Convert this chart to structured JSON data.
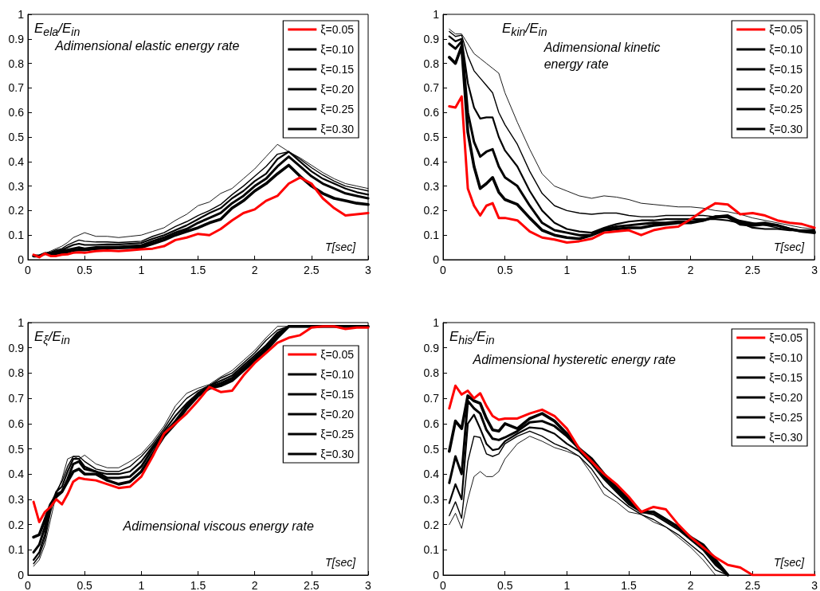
{
  "chart_data": [
    {
      "type": "line",
      "ylabel": "E$_{ela}$/E$_{in}$",
      "xlabel": "T[sec]",
      "annotations": [
        "Adimensional elastic energy rate"
      ],
      "legend": "top right",
      "marker": "none",
      "grid": false,
      "xlim": [
        0,
        3
      ],
      "ylim": [
        0,
        1
      ],
      "xticks": [
        0,
        0.5,
        1,
        1.5,
        2,
        2.5,
        3
      ],
      "yticks": [
        0,
        0.1,
        0.2,
        0.3,
        0.4,
        0.5,
        0.6,
        0.7,
        0.8,
        0.9,
        1
      ],
      "x": [
        0.05,
        0.1,
        0.15,
        0.2,
        0.25,
        0.3,
        0.35,
        0.4,
        0.45,
        0.5,
        0.6,
        0.7,
        0.8,
        0.9,
        1.0,
        1.1,
        1.2,
        1.3,
        1.4,
        1.5,
        1.6,
        1.7,
        1.8,
        1.9,
        2.0,
        2.1,
        2.2,
        2.3,
        2.4,
        2.5,
        2.6,
        2.7,
        2.8,
        2.9,
        3.0
      ],
      "series": [
        {
          "name": "ξ=0.05",
          "color": "#ff0000",
          "values": [
            0.02,
            0.01,
            0.025,
            0.015,
            0.015,
            0.02,
            0.022,
            0.028,
            0.03,
            0.028,
            0.035,
            0.037,
            0.035,
            0.038,
            0.042,
            0.045,
            0.055,
            0.08,
            0.09,
            0.105,
            0.1,
            0.125,
            0.16,
            0.19,
            0.205,
            0.24,
            0.26,
            0.31,
            0.335,
            0.31,
            0.25,
            0.21,
            0.18,
            0.185,
            0.19
          ]
        },
        {
          "name": "ξ=0.10",
          "color": "#000000",
          "values": [
            0.015,
            0.015,
            0.025,
            0.022,
            0.025,
            0.028,
            0.032,
            0.038,
            0.04,
            0.04,
            0.045,
            0.048,
            0.048,
            0.05,
            0.05,
            0.065,
            0.08,
            0.1,
            0.115,
            0.13,
            0.15,
            0.165,
            0.21,
            0.24,
            0.28,
            0.31,
            0.35,
            0.385,
            0.34,
            0.3,
            0.27,
            0.25,
            0.24,
            0.23,
            0.225
          ]
        },
        {
          "name": "ξ=0.15",
          "color": "#000000",
          "values": [
            0.015,
            0.015,
            0.025,
            0.025,
            0.03,
            0.035,
            0.04,
            0.045,
            0.05,
            0.045,
            0.05,
            0.052,
            0.052,
            0.055,
            0.058,
            0.075,
            0.09,
            0.11,
            0.125,
            0.15,
            0.17,
            0.19,
            0.23,
            0.26,
            0.3,
            0.33,
            0.38,
            0.42,
            0.38,
            0.34,
            0.31,
            0.29,
            0.27,
            0.26,
            0.25
          ]
        },
        {
          "name": "ξ=0.20",
          "color": "#000000",
          "values": [
            0.015,
            0.015,
            0.025,
            0.028,
            0.035,
            0.04,
            0.05,
            0.06,
            0.065,
            0.06,
            0.06,
            0.062,
            0.062,
            0.065,
            0.068,
            0.085,
            0.1,
            0.12,
            0.14,
            0.165,
            0.19,
            0.21,
            0.25,
            0.28,
            0.32,
            0.35,
            0.41,
            0.44,
            0.4,
            0.36,
            0.33,
            0.31,
            0.29,
            0.275,
            0.265
          ]
        },
        {
          "name": "ξ=0.25",
          "color": "#000000",
          "values": [
            0.015,
            0.015,
            0.025,
            0.03,
            0.04,
            0.045,
            0.06,
            0.07,
            0.08,
            0.075,
            0.072,
            0.072,
            0.07,
            0.072,
            0.075,
            0.095,
            0.11,
            0.135,
            0.155,
            0.18,
            0.2,
            0.225,
            0.265,
            0.3,
            0.34,
            0.38,
            0.43,
            0.44,
            0.41,
            0.375,
            0.345,
            0.32,
            0.3,
            0.29,
            0.28
          ]
        },
        {
          "name": "ξ=0.30",
          "color": "#000000",
          "values": [
            0.02,
            0.015,
            0.025,
            0.035,
            0.045,
            0.055,
            0.07,
            0.09,
            0.1,
            0.11,
            0.095,
            0.095,
            0.09,
            0.095,
            0.1,
            0.115,
            0.13,
            0.16,
            0.185,
            0.22,
            0.235,
            0.27,
            0.29,
            0.33,
            0.37,
            0.42,
            0.47,
            0.44,
            0.415,
            0.385,
            0.355,
            0.33,
            0.31,
            0.3,
            0.29
          ]
        }
      ]
    },
    {
      "type": "line",
      "ylabel": "E$_{kin}$/E$_{in}$",
      "xlabel": "T[sec]",
      "annotations": [
        "Adimensional kinetic energy rate"
      ],
      "legend": "top right",
      "marker": "none",
      "grid": false,
      "xlim": [
        0,
        3
      ],
      "ylim": [
        0,
        1
      ],
      "xticks": [
        0,
        0.5,
        1,
        1.5,
        2,
        2.5,
        3
      ],
      "yticks": [
        0,
        0.1,
        0.2,
        0.3,
        0.4,
        0.5,
        0.6,
        0.7,
        0.8,
        0.9,
        1
      ],
      "x": [
        0.05,
        0.1,
        0.15,
        0.2,
        0.25,
        0.3,
        0.35,
        0.4,
        0.45,
        0.5,
        0.6,
        0.7,
        0.8,
        0.9,
        1.0,
        1.1,
        1.2,
        1.3,
        1.4,
        1.5,
        1.6,
        1.7,
        1.8,
        1.9,
        2.0,
        2.1,
        2.2,
        2.3,
        2.4,
        2.5,
        2.6,
        2.7,
        2.8,
        2.9,
        3.0
      ],
      "series": [
        {
          "name": "ξ=0.05",
          "color": "#ff0000",
          "values": [
            0.625,
            0.62,
            0.665,
            0.29,
            0.22,
            0.18,
            0.22,
            0.23,
            0.17,
            0.17,
            0.16,
            0.115,
            0.09,
            0.082,
            0.07,
            0.075,
            0.085,
            0.11,
            0.115,
            0.12,
            0.1,
            0.12,
            0.13,
            0.135,
            0.165,
            0.2,
            0.23,
            0.225,
            0.185,
            0.19,
            0.18,
            0.16,
            0.15,
            0.145,
            0.13
          ]
        },
        {
          "name": "ξ=0.10",
          "color": "#000000",
          "values": [
            0.825,
            0.8,
            0.87,
            0.52,
            0.38,
            0.29,
            0.31,
            0.335,
            0.275,
            0.245,
            0.225,
            0.17,
            0.12,
            0.1,
            0.09,
            0.085,
            0.1,
            0.12,
            0.125,
            0.13,
            0.13,
            0.14,
            0.145,
            0.15,
            0.15,
            0.16,
            0.175,
            0.175,
            0.145,
            0.14,
            0.145,
            0.14,
            0.125,
            0.115,
            0.11
          ]
        },
        {
          "name": "ξ=0.15",
          "color": "#000000",
          "values": [
            0.88,
            0.86,
            0.89,
            0.6,
            0.48,
            0.42,
            0.44,
            0.45,
            0.38,
            0.335,
            0.3,
            0.22,
            0.15,
            0.12,
            0.11,
            0.1,
            0.1,
            0.125,
            0.135,
            0.14,
            0.145,
            0.15,
            0.15,
            0.155,
            0.155,
            0.16,
            0.175,
            0.18,
            0.155,
            0.145,
            0.15,
            0.14,
            0.125,
            0.115,
            0.115
          ]
        },
        {
          "name": "ξ=0.20",
          "color": "#000000",
          "values": [
            0.91,
            0.89,
            0.9,
            0.72,
            0.62,
            0.575,
            0.58,
            0.58,
            0.5,
            0.445,
            0.38,
            0.28,
            0.2,
            0.15,
            0.125,
            0.115,
            0.11,
            0.13,
            0.145,
            0.155,
            0.16,
            0.16,
            0.165,
            0.165,
            0.165,
            0.165,
            0.165,
            0.16,
            0.15,
            0.13,
            0.125,
            0.125,
            0.12,
            0.12,
            0.12
          ]
        },
        {
          "name": "ξ=0.25",
          "color": "#000000",
          "values": [
            0.93,
            0.91,
            0.915,
            0.83,
            0.77,
            0.74,
            0.71,
            0.68,
            0.6,
            0.55,
            0.47,
            0.36,
            0.27,
            0.22,
            0.2,
            0.19,
            0.185,
            0.19,
            0.19,
            0.18,
            0.175,
            0.175,
            0.18,
            0.18,
            0.18,
            0.18,
            0.175,
            0.17,
            0.16,
            0.15,
            0.14,
            0.13,
            0.12,
            0.12,
            0.115
          ]
        },
        {
          "name": "ξ=0.30",
          "color": "#000000",
          "values": [
            0.94,
            0.92,
            0.92,
            0.88,
            0.84,
            0.82,
            0.8,
            0.78,
            0.76,
            0.68,
            0.56,
            0.45,
            0.35,
            0.3,
            0.28,
            0.26,
            0.25,
            0.26,
            0.255,
            0.245,
            0.23,
            0.225,
            0.22,
            0.215,
            0.215,
            0.21,
            0.2,
            0.195,
            0.185,
            0.17,
            0.16,
            0.15,
            0.14,
            0.13,
            0.125
          ]
        }
      ]
    },
    {
      "type": "line",
      "ylabel": "E$_{ξ}$/E$_{in}$",
      "xlabel": "T[sec]",
      "annotations": [
        "Adimensional viscous energy rate"
      ],
      "legend": "right",
      "marker": "none",
      "grid": false,
      "xlim": [
        0,
        3
      ],
      "ylim": [
        0,
        1
      ],
      "xticks": [
        0,
        0.5,
        1,
        1.5,
        2,
        2.5,
        3
      ],
      "yticks": [
        0,
        0.1,
        0.2,
        0.3,
        0.4,
        0.5,
        0.6,
        0.7,
        0.8,
        0.9,
        1
      ],
      "x": [
        0.05,
        0.1,
        0.15,
        0.2,
        0.25,
        0.3,
        0.35,
        0.4,
        0.45,
        0.5,
        0.6,
        0.7,
        0.8,
        0.9,
        1.0,
        1.1,
        1.2,
        1.3,
        1.4,
        1.5,
        1.6,
        1.7,
        1.8,
        1.9,
        2.0,
        2.1,
        2.2,
        2.3,
        2.4,
        2.5,
        2.6,
        2.7,
        2.8,
        2.9,
        3.0
      ],
      "series": [
        {
          "name": "ξ=0.05",
          "color": "#ff0000",
          "values": [
            0.29,
            0.21,
            0.25,
            0.27,
            0.3,
            0.28,
            0.32,
            0.37,
            0.385,
            0.38,
            0.375,
            0.36,
            0.345,
            0.35,
            0.39,
            0.47,
            0.56,
            0.6,
            0.64,
            0.69,
            0.745,
            0.725,
            0.73,
            0.79,
            0.84,
            0.88,
            0.92,
            0.94,
            0.95,
            0.98,
            0.985,
            0.985,
            0.975,
            0.98,
            0.98
          ]
        },
        {
          "name": "ξ=0.10",
          "color": "#000000",
          "values": [
            0.15,
            0.16,
            0.22,
            0.28,
            0.31,
            0.33,
            0.37,
            0.41,
            0.42,
            0.4,
            0.4,
            0.375,
            0.36,
            0.37,
            0.41,
            0.48,
            0.55,
            0.6,
            0.66,
            0.71,
            0.74,
            0.75,
            0.77,
            0.81,
            0.85,
            0.89,
            0.94,
            0.985,
            0.985,
            0.985,
            0.985,
            0.985,
            0.985,
            0.985,
            0.985
          ]
        },
        {
          "name": "ξ=0.15",
          "color": "#000000",
          "values": [
            0.09,
            0.12,
            0.19,
            0.28,
            0.32,
            0.33,
            0.38,
            0.44,
            0.45,
            0.42,
            0.41,
            0.385,
            0.385,
            0.39,
            0.43,
            0.5,
            0.56,
            0.61,
            0.67,
            0.72,
            0.745,
            0.76,
            0.78,
            0.82,
            0.86,
            0.9,
            0.95,
            0.985,
            0.985,
            0.985,
            0.985,
            0.985,
            0.985,
            0.985,
            0.985
          ]
        },
        {
          "name": "ξ=0.20",
          "color": "#000000",
          "values": [
            0.06,
            0.09,
            0.16,
            0.27,
            0.33,
            0.35,
            0.41,
            0.46,
            0.46,
            0.43,
            0.41,
            0.4,
            0.4,
            0.41,
            0.45,
            0.51,
            0.57,
            0.63,
            0.68,
            0.72,
            0.75,
            0.77,
            0.79,
            0.83,
            0.87,
            0.91,
            0.96,
            0.985,
            0.985,
            0.985,
            0.985,
            0.985,
            0.985,
            0.985,
            0.985
          ]
        },
        {
          "name": "ξ=0.25",
          "color": "#000000",
          "values": [
            0.045,
            0.075,
            0.14,
            0.25,
            0.33,
            0.37,
            0.43,
            0.47,
            0.47,
            0.45,
            0.42,
            0.41,
            0.41,
            0.43,
            0.47,
            0.52,
            0.58,
            0.65,
            0.7,
            0.73,
            0.75,
            0.78,
            0.8,
            0.84,
            0.88,
            0.93,
            0.97,
            0.985,
            0.985,
            0.985,
            0.985,
            0.985,
            0.985,
            0.985,
            0.985
          ]
        },
        {
          "name": "ξ=0.30",
          "color": "#000000",
          "values": [
            0.035,
            0.06,
            0.12,
            0.22,
            0.32,
            0.38,
            0.46,
            0.47,
            0.46,
            0.475,
            0.44,
            0.425,
            0.425,
            0.45,
            0.48,
            0.53,
            0.59,
            0.67,
            0.72,
            0.74,
            0.755,
            0.785,
            0.81,
            0.85,
            0.89,
            0.94,
            0.985,
            0.985,
            0.985,
            0.985,
            0.985,
            0.985,
            0.985,
            0.985,
            0.985
          ]
        }
      ]
    },
    {
      "type": "line",
      "ylabel": "E$_{his}$/E$_{in}$",
      "xlabel": "T[sec]",
      "annotations": [
        "Adimensional hysteretic energy rate"
      ],
      "legend": "top right",
      "marker": "none",
      "grid": false,
      "xlim": [
        0,
        3
      ],
      "ylim": [
        0,
        1
      ],
      "xticks": [
        0,
        0.5,
        1,
        1.5,
        2,
        2.5,
        3
      ],
      "yticks": [
        0,
        0.1,
        0.2,
        0.3,
        0.4,
        0.5,
        0.6,
        0.7,
        0.8,
        0.9,
        1
      ],
      "x": [
        0.05,
        0.1,
        0.15,
        0.2,
        0.25,
        0.3,
        0.35,
        0.4,
        0.45,
        0.5,
        0.6,
        0.7,
        0.8,
        0.9,
        1.0,
        1.1,
        1.2,
        1.3,
        1.4,
        1.5,
        1.6,
        1.7,
        1.8,
        1.9,
        2.0,
        2.1,
        2.2,
        2.3,
        2.4,
        2.5,
        2.6,
        2.7,
        2.8,
        2.9,
        3.0
      ],
      "series": [
        {
          "name": "ξ=0.05",
          "color": "#ff0000",
          "values": [
            0.66,
            0.75,
            0.715,
            0.73,
            0.7,
            0.72,
            0.67,
            0.63,
            0.615,
            0.62,
            0.62,
            0.64,
            0.655,
            0.63,
            0.58,
            0.5,
            0.45,
            0.4,
            0.36,
            0.31,
            0.25,
            0.27,
            0.26,
            0.2,
            0.15,
            0.11,
            0.07,
            0.04,
            0.03,
            0,
            0,
            0,
            0,
            0,
            0
          ]
        },
        {
          "name": "ξ=0.10",
          "color": "#000000",
          "values": [
            0.49,
            0.61,
            0.58,
            0.71,
            0.69,
            0.68,
            0.62,
            0.575,
            0.57,
            0.6,
            0.58,
            0.62,
            0.64,
            0.61,
            0.56,
            0.5,
            0.46,
            0.4,
            0.35,
            0.3,
            0.25,
            0.25,
            0.22,
            0.19,
            0.15,
            0.12,
            0.06,
            0,
            null,
            null,
            null,
            null,
            null,
            null,
            null
          ]
        },
        {
          "name": "ξ=0.15",
          "color": "#000000",
          "values": [
            0.365,
            0.47,
            0.4,
            0.69,
            0.66,
            0.64,
            0.575,
            0.54,
            0.535,
            0.545,
            0.57,
            0.605,
            0.61,
            0.59,
            0.55,
            0.5,
            0.46,
            0.39,
            0.34,
            0.29,
            0.25,
            0.25,
            0.22,
            0.19,
            0.15,
            0.11,
            0.05,
            0,
            null,
            null,
            null,
            null,
            null,
            null,
            null
          ]
        },
        {
          "name": "ξ=0.20",
          "color": "#000000",
          "values": [
            0.285,
            0.36,
            0.3,
            0.6,
            0.635,
            0.58,
            0.52,
            0.495,
            0.5,
            0.53,
            0.56,
            0.585,
            0.58,
            0.56,
            0.52,
            0.49,
            0.44,
            0.38,
            0.33,
            0.28,
            0.25,
            0.24,
            0.21,
            0.18,
            0.14,
            0.1,
            0.04,
            0,
            null,
            null,
            null,
            null,
            null,
            null,
            null
          ]
        },
        {
          "name": "ξ=0.25",
          "color": "#000000",
          "values": [
            0.235,
            0.29,
            0.225,
            0.45,
            0.55,
            0.545,
            0.48,
            0.47,
            0.48,
            0.52,
            0.55,
            0.57,
            0.55,
            0.52,
            0.5,
            0.47,
            0.42,
            0.35,
            0.31,
            0.27,
            0.24,
            0.22,
            0.19,
            0.16,
            0.12,
            0.08,
            0.02,
            0,
            null,
            null,
            null,
            null,
            null,
            null,
            null
          ]
        },
        {
          "name": "ξ=0.30",
          "color": "#000000",
          "values": [
            0.2,
            0.245,
            0.185,
            0.3,
            0.39,
            0.41,
            0.39,
            0.39,
            0.41,
            0.46,
            0.52,
            0.55,
            0.53,
            0.505,
            0.49,
            0.47,
            0.4,
            0.32,
            0.29,
            0.25,
            0.24,
            0.21,
            0.19,
            0.15,
            0.11,
            0.06,
            0,
            null,
            null,
            null,
            null,
            null,
            null,
            null,
            null
          ]
        }
      ]
    }
  ]
}
